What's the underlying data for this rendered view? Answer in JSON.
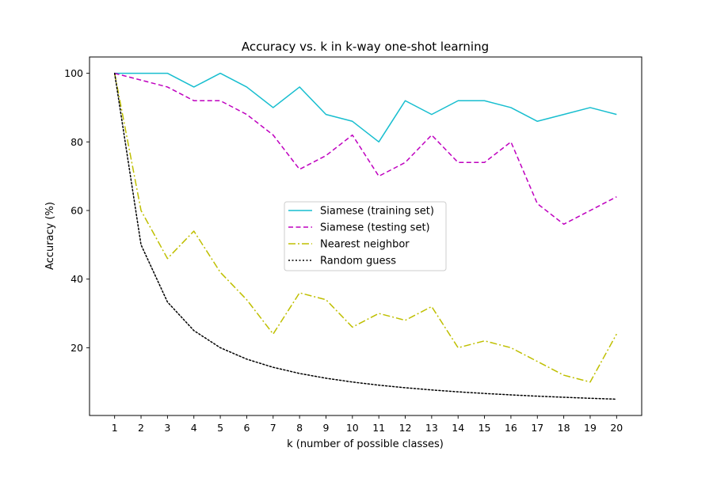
{
  "chart_data": {
    "type": "line",
    "title": "Accuracy vs. k in k-way one-shot learning",
    "xlabel": "k (number of possible classes)",
    "ylabel": "Accuracy (%)",
    "x": [
      1,
      2,
      3,
      4,
      5,
      6,
      7,
      8,
      9,
      10,
      11,
      12,
      13,
      14,
      15,
      16,
      17,
      18,
      19,
      20
    ],
    "xlim": [
      0.05,
      20.95
    ],
    "ylim": [
      0.25,
      104.75
    ],
    "xticks": [
      "1",
      "2",
      "3",
      "4",
      "5",
      "6",
      "7",
      "8",
      "9",
      "10",
      "11",
      "12",
      "13",
      "14",
      "15",
      "16",
      "17",
      "18",
      "19",
      "20"
    ],
    "yticks": [
      20,
      40,
      60,
      80,
      100
    ],
    "yticklabels": [
      "20",
      "40",
      "60",
      "80",
      "100"
    ],
    "grid": false,
    "legend_position": "center-right",
    "series": [
      {
        "name": "Siamese (training set)",
        "color": "#17becf",
        "style": "solid",
        "values": [
          100,
          100,
          100,
          96,
          100,
          96,
          90,
          96,
          88,
          86,
          80,
          92,
          88,
          92,
          92,
          90,
          86,
          88,
          90,
          88
        ]
      },
      {
        "name": "Siamese (testing set)",
        "color": "#bf00bf",
        "style": "dashed",
        "values": [
          100,
          98,
          96,
          92,
          92,
          88,
          82,
          72,
          76,
          82,
          70,
          74,
          82,
          74,
          74,
          80,
          62,
          56,
          60,
          64
        ]
      },
      {
        "name": "Nearest neighbor",
        "color": "#bfbf00",
        "style": "dashdot",
        "values": [
          100,
          60,
          46,
          54,
          42,
          34,
          24,
          36,
          34,
          26,
          30,
          28,
          32,
          20,
          22,
          20,
          16,
          12,
          10,
          24
        ]
      },
      {
        "name": "Random guess",
        "color": "#000000",
        "style": "dotted",
        "values": [
          100,
          50,
          33.33,
          25,
          20,
          16.67,
          14.29,
          12.5,
          11.11,
          10,
          9.09,
          8.33,
          7.69,
          7.14,
          6.67,
          6.25,
          5.88,
          5.56,
          5.26,
          5
        ]
      }
    ]
  }
}
